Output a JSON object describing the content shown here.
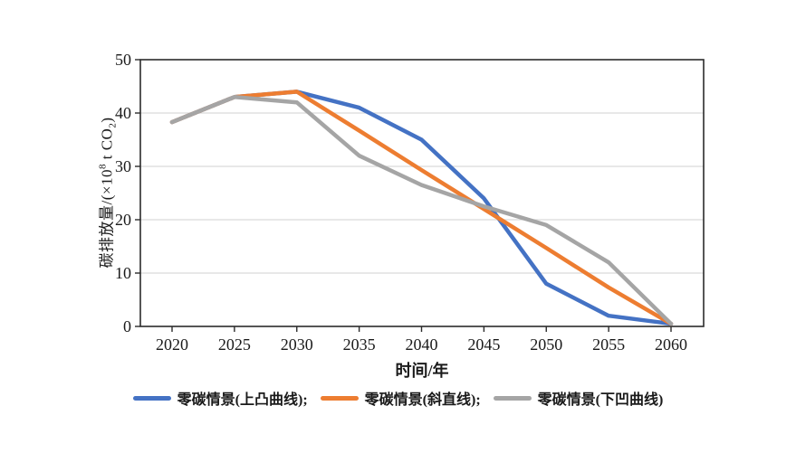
{
  "colors": {
    "background": "#FFFFFF",
    "plot_border": "#2B2B2B",
    "gridline": "#D9D9D9",
    "tick": "#2B2B2B",
    "text": "#1A1A1A"
  },
  "chart_data": {
    "type": "line",
    "title": "",
    "xlabel": "时间/年",
    "ylabel": {
      "pre": "碳排放量/(×10",
      "sup": "8",
      "mid": " t CO",
      "sub": "2",
      "post": ")"
    },
    "x_categories": [
      "2020",
      "2025",
      "2030",
      "2035",
      "2040",
      "2045",
      "2050",
      "2055",
      "2060"
    ],
    "yticks": [
      0,
      10,
      20,
      30,
      40,
      50
    ],
    "ylim": [
      0,
      50
    ],
    "grid": "horizontal-only",
    "legend_position": "bottom",
    "series": [
      {
        "name": "zero-carbon-convex",
        "label": "零碳情景(上凸曲线);",
        "color": "#4472C4",
        "values": [
          38.3,
          43,
          44,
          41,
          35,
          24,
          8,
          2,
          0.5
        ]
      },
      {
        "name": "zero-carbon-straight",
        "label": "零碳情景(斜直线);",
        "color": "#ED7D31",
        "values": [
          38.3,
          43,
          44,
          36.7,
          29.3,
          22,
          14.7,
          7.3,
          0.5
        ]
      },
      {
        "name": "zero-carbon-concave",
        "label": "零碳情景(下凹曲线)",
        "color": "#A5A5A5",
        "values": [
          38.3,
          43,
          42,
          32,
          26.5,
          22.5,
          19,
          12,
          0.5
        ]
      }
    ]
  }
}
